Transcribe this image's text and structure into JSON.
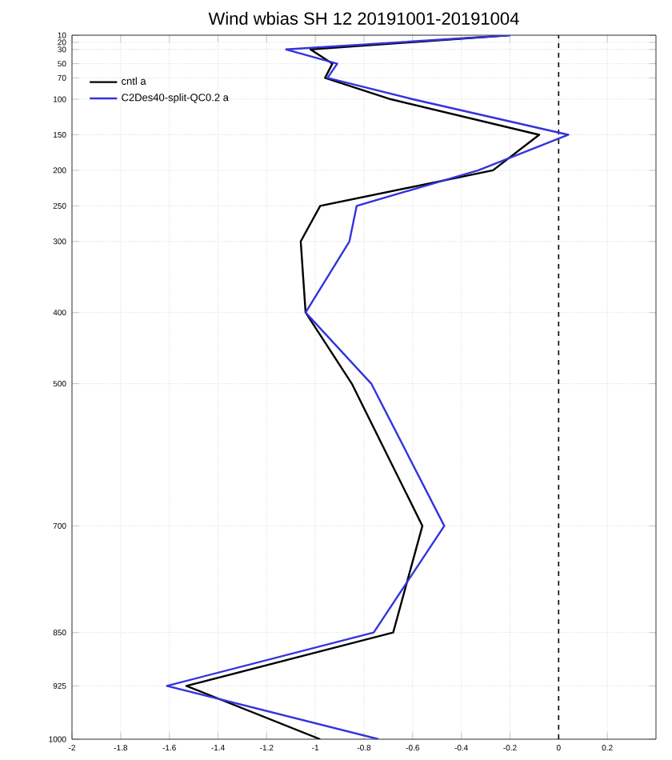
{
  "chart_data": {
    "type": "line",
    "title": "Wind wbias SH 12 20191001-20191004",
    "series": [
      {
        "name": "cntl   a",
        "color": "#000000",
        "x": [
          -0.2,
          -1.02,
          -0.93,
          -0.96,
          -0.69,
          -0.08,
          -0.27,
          -0.98,
          -1.06,
          -1.04,
          -0.85,
          -0.56,
          -0.68,
          -1.53,
          -0.98
        ],
        "values": [
          10,
          30,
          50,
          70,
          100,
          150,
          200,
          250,
          300,
          400,
          500,
          700,
          850,
          925,
          1000
        ]
      },
      {
        "name": "C2Des40-split-QC0.2   a",
        "color": "#3333dd",
        "x": [
          -0.2,
          -1.12,
          -0.91,
          -0.95,
          -0.6,
          0.04,
          -0.33,
          -0.83,
          -0.86,
          -1.04,
          -0.77,
          -0.47,
          -0.76,
          -1.61,
          -0.74
        ],
        "values": [
          10,
          30,
          50,
          70,
          100,
          150,
          200,
          250,
          300,
          400,
          500,
          700,
          850,
          925,
          1000
        ]
      }
    ],
    "xlim": [
      -2,
      0.4
    ],
    "ylim": [
      1000,
      10
    ],
    "xticks": [
      -2,
      -1.8,
      -1.6,
      -1.4,
      -1.2,
      -1,
      -0.8,
      -0.6,
      -0.4,
      -0.2,
      0,
      0.2
    ],
    "yticks": [
      10,
      20,
      30,
      50,
      70,
      100,
      150,
      200,
      250,
      300,
      400,
      500,
      700,
      850,
      925,
      1000
    ],
    "ref_lines": [
      {
        "axis": "x",
        "value": 0,
        "line_style": "dashed"
      }
    ],
    "grid": true,
    "legend": "top left",
    "marker": "none",
    "line_style": "solid"
  }
}
